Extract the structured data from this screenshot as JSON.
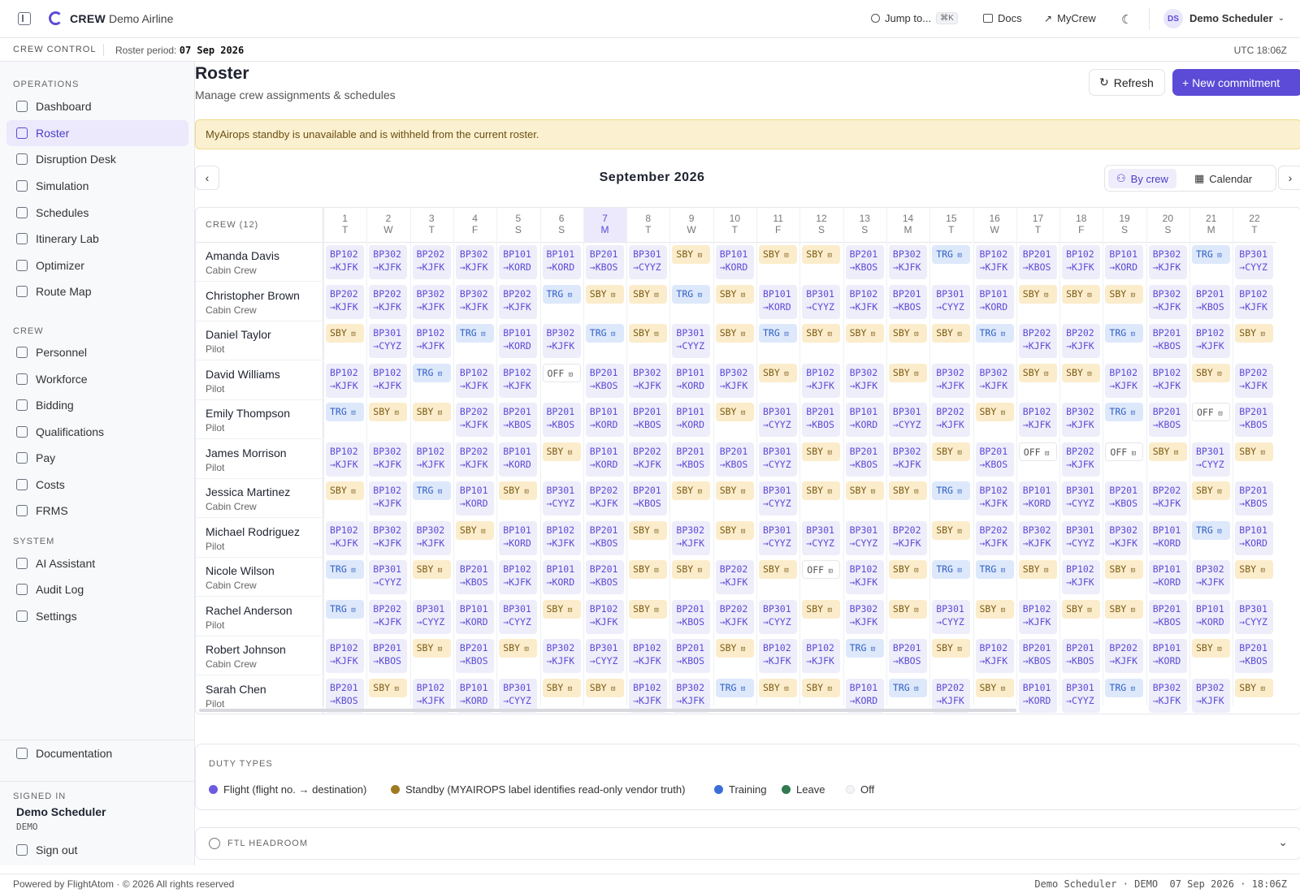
{
  "topbar": {
    "brand": "CREW",
    "airline": "Demo Airline",
    "jump": "Jump to...",
    "jump_kbd": "⌘K",
    "docs": "Docs",
    "mycrew": "MyCrew",
    "avatar": "DS",
    "user": "Demo Scheduler"
  },
  "subbar": {
    "title": "CREW CONTROL",
    "period_label": "Roster period:",
    "period_value": "07 Sep 2026",
    "utc": "UTC 18:06Z"
  },
  "sidebar": {
    "sections": {
      "operations": "OPERATIONS",
      "crew": "CREW",
      "system": "SYSTEM"
    },
    "operations": [
      "Dashboard",
      "Roster",
      "Disruption Desk",
      "Simulation",
      "Schedules",
      "Itinerary Lab",
      "Optimizer",
      "Route Map"
    ],
    "crew": [
      "Personnel",
      "Workforce",
      "Bidding",
      "Qualifications",
      "Pay",
      "Costs",
      "FRMS"
    ],
    "system": [
      "AI Assistant",
      "Audit Log",
      "Settings"
    ],
    "documentation": "Documentation",
    "signed_in_label": "SIGNED IN",
    "signed_in_user": "Demo Scheduler",
    "signed_in_role": "DEMO",
    "sign_out": "Sign out",
    "active": "Roster"
  },
  "page": {
    "title": "Roster",
    "subtitle": "Manage crew assignments & schedules",
    "refresh": "Refresh",
    "new_commitment": "+ New commitment",
    "banner": "MyAirops standby is unavailable and is withheld from the current roster.",
    "month": "September 2026",
    "view_by_crew": "By crew",
    "view_calendar": "Calendar"
  },
  "roster": {
    "crew_header": "CREW (12)",
    "today": 7,
    "days": [
      {
        "d": "1",
        "w": "T"
      },
      {
        "d": "2",
        "w": "W"
      },
      {
        "d": "3",
        "w": "T"
      },
      {
        "d": "4",
        "w": "F"
      },
      {
        "d": "5",
        "w": "S"
      },
      {
        "d": "6",
        "w": "S"
      },
      {
        "d": "7",
        "w": "M"
      },
      {
        "d": "8",
        "w": "T"
      },
      {
        "d": "9",
        "w": "W"
      },
      {
        "d": "10",
        "w": "T"
      },
      {
        "d": "11",
        "w": "F"
      },
      {
        "d": "12",
        "w": "S"
      },
      {
        "d": "13",
        "w": "S"
      },
      {
        "d": "14",
        "w": "M"
      },
      {
        "d": "15",
        "w": "T"
      },
      {
        "d": "16",
        "w": "W"
      },
      {
        "d": "17",
        "w": "T"
      },
      {
        "d": "18",
        "w": "F"
      },
      {
        "d": "19",
        "w": "S"
      },
      {
        "d": "20",
        "w": "S"
      },
      {
        "d": "21",
        "w": "M"
      },
      {
        "d": "22",
        "w": "T"
      }
    ],
    "crew": [
      {
        "name": "Amanda Davis",
        "role": "Cabin Crew",
        "duties": [
          "BP102 →KJFK",
          "BP302 →KJFK",
          "BP202 →KJFK",
          "BP302 →KJFK",
          "BP101 →KORD",
          "BP101 →KORD",
          "BP201 →KBOS",
          "BP301 →CYYZ",
          "SBY",
          "BP101 →KORD",
          "SBY",
          "SBY",
          "BP201 →KBOS",
          "BP302 →KJFK",
          "TRG",
          "BP102 →KJFK",
          "BP201 →KBOS",
          "BP102 →KJFK",
          "BP101 →KORD",
          "BP302 →KJFK",
          "TRG",
          "BP301 →CYYZ"
        ]
      },
      {
        "name": "Christopher Brown",
        "role": "Cabin Crew",
        "duties": [
          "BP202 →KJFK",
          "BP202 →KJFK",
          "BP302 →KJFK",
          "BP302 →KJFK",
          "BP202 →KJFK",
          "TRG",
          "SBY",
          "SBY",
          "TRG",
          "SBY",
          "BP101 →KORD",
          "BP301 →CYYZ",
          "BP102 →KJFK",
          "BP201 →KBOS",
          "BP301 →CYYZ",
          "BP101 →KORD",
          "SBY",
          "SBY",
          "SBY",
          "BP302 →KJFK",
          "BP201 →KBOS",
          "BP102 →KJFK"
        ]
      },
      {
        "name": "Daniel Taylor",
        "role": "Pilot",
        "duties": [
          "SBY",
          "BP301 →CYYZ",
          "BP102 →KJFK",
          "TRG",
          "BP101 →KORD",
          "BP302 →KJFK",
          "TRG",
          "SBY",
          "BP301 →CYYZ",
          "SBY",
          "TRG",
          "SBY",
          "SBY",
          "SBY",
          "SBY",
          "TRG",
          "BP202 →KJFK",
          "BP202 →KJFK",
          "TRG",
          "BP201 →KBOS",
          "BP102 →KJFK",
          "SBY"
        ]
      },
      {
        "name": "David Williams",
        "role": "Pilot",
        "duties": [
          "BP102 →KJFK",
          "BP102 →KJFK",
          "TRG",
          "BP102 →KJFK",
          "BP102 →KJFK",
          "OFF",
          "BP201 →KBOS",
          "BP302 →KJFK",
          "BP101 →KORD",
          "BP302 →KJFK",
          "SBY",
          "BP102 →KJFK",
          "BP302 →KJFK",
          "SBY",
          "BP302 →KJFK",
          "BP302 →KJFK",
          "SBY",
          "SBY",
          "BP102 →KJFK",
          "BP102 →KJFK",
          "SBY",
          "BP202 →KJFK"
        ]
      },
      {
        "name": "Emily Thompson",
        "role": "Pilot",
        "duties": [
          "TRG",
          "SBY",
          "SBY",
          "BP202 →KJFK",
          "BP201 →KBOS",
          "BP201 →KBOS",
          "BP101 →KORD",
          "BP201 →KBOS",
          "BP101 →KORD",
          "SBY",
          "BP301 →CYYZ",
          "BP201 →KBOS",
          "BP101 →KORD",
          "BP301 →CYYZ",
          "BP202 →KJFK",
          "SBY",
          "BP102 →KJFK",
          "BP302 →KJFK",
          "TRG",
          "BP201 →KBOS",
          "OFF",
          "BP201 →KBOS"
        ]
      },
      {
        "name": "James Morrison",
        "role": "Pilot",
        "duties": [
          "BP102 →KJFK",
          "BP302 →KJFK",
          "BP102 →KJFK",
          "BP202 →KJFK",
          "BP101 →KORD",
          "SBY",
          "BP101 →KORD",
          "BP202 →KJFK",
          "BP201 →KBOS",
          "BP201 →KBOS",
          "BP301 →CYYZ",
          "SBY",
          "BP201 →KBOS",
          "BP302 →KJFK",
          "SBY",
          "BP201 →KBOS",
          "OFF",
          "BP202 →KJFK",
          "OFF",
          "SBY",
          "BP301 →CYYZ",
          "SBY"
        ]
      },
      {
        "name": "Jessica Martinez",
        "role": "Cabin Crew",
        "duties": [
          "SBY",
          "BP102 →KJFK",
          "TRG",
          "BP101 →KORD",
          "SBY",
          "BP301 →CYYZ",
          "BP202 →KJFK",
          "BP201 →KBOS",
          "SBY",
          "SBY",
          "BP301 →CYYZ",
          "SBY",
          "SBY",
          "SBY",
          "TRG",
          "BP102 →KJFK",
          "BP101 →KORD",
          "BP301 →CYYZ",
          "BP201 →KBOS",
          "BP202 →KJFK",
          "SBY",
          "BP201 →KBOS"
        ]
      },
      {
        "name": "Michael Rodriguez",
        "role": "Pilot",
        "duties": [
          "BP102 →KJFK",
          "BP302 →KJFK",
          "BP302 →KJFK",
          "SBY",
          "BP101 →KORD",
          "BP102 →KJFK",
          "BP201 →KBOS",
          "SBY",
          "BP302 →KJFK",
          "SBY",
          "BP301 →CYYZ",
          "BP301 →CYYZ",
          "BP301 →CYYZ",
          "BP202 →KJFK",
          "SBY",
          "BP202 →KJFK",
          "BP302 →KJFK",
          "BP301 →CYYZ",
          "BP302 →KJFK",
          "BP101 →KORD",
          "TRG",
          "BP101 →KORD"
        ]
      },
      {
        "name": "Nicole Wilson",
        "role": "Cabin Crew",
        "duties": [
          "TRG",
          "BP301 →CYYZ",
          "SBY",
          "BP201 →KBOS",
          "BP102 →KJFK",
          "BP101 →KORD",
          "BP201 →KBOS",
          "SBY",
          "SBY",
          "BP202 →KJFK",
          "SBY",
          "OFF",
          "BP102 →KJFK",
          "SBY",
          "TRG",
          "TRG",
          "SBY",
          "BP102 →KJFK",
          "SBY",
          "BP101 →KORD",
          "BP302 →KJFK",
          "SBY"
        ]
      },
      {
        "name": "Rachel Anderson",
        "role": "Pilot",
        "duties": [
          "TRG",
          "BP202 →KJFK",
          "BP301 →CYYZ",
          "BP101 →KORD",
          "BP301 →CYYZ",
          "SBY",
          "BP102 →KJFK",
          "SBY",
          "BP201 →KBOS",
          "BP202 →KJFK",
          "BP301 →CYYZ",
          "SBY",
          "BP302 →KJFK",
          "SBY",
          "BP301 →CYYZ",
          "SBY",
          "BP102 →KJFK",
          "SBY",
          "SBY",
          "BP201 →KBOS",
          "BP101 →KORD",
          "BP301 →CYYZ"
        ]
      },
      {
        "name": "Robert Johnson",
        "role": "Cabin Crew",
        "duties": [
          "BP102 →KJFK",
          "BP201 →KBOS",
          "SBY",
          "BP201 →KBOS",
          "SBY",
          "BP302 →KJFK",
          "BP301 →CYYZ",
          "BP102 →KJFK",
          "BP201 →KBOS",
          "SBY",
          "BP102 →KJFK",
          "BP102 →KJFK",
          "TRG",
          "BP201 →KBOS",
          "SBY",
          "BP102 →KJFK",
          "BP201 →KBOS",
          "BP201 →KBOS",
          "BP202 →KJFK",
          "BP101 →KORD",
          "SBY",
          "BP201 →KBOS"
        ]
      },
      {
        "name": "Sarah Chen",
        "role": "Pilot",
        "duties": [
          "BP201 →KBOS",
          "SBY",
          "BP102 →KJFK",
          "BP101 →KORD",
          "BP301 →CYYZ",
          "SBY",
          "SBY",
          "BP102 →KJFK",
          "BP302 →KJFK",
          "TRG",
          "SBY",
          "SBY",
          "BP101 →KORD",
          "TRG",
          "BP202 →KJFK",
          "SBY",
          "BP101 →KORD",
          "BP301 →CYYZ",
          "TRG",
          "BP302 →KJFK",
          "BP302 →KJFK",
          "SBY"
        ]
      }
    ]
  },
  "legend": {
    "title": "DUTY TYPES",
    "items": [
      {
        "label": "Flight (flight no. → destination)",
        "color": "#6a5be0"
      },
      {
        "label": "Standby (MYAIROPS label identifies read-only vendor truth)",
        "color": "#a07a22"
      },
      {
        "label": "Training",
        "color": "#3a6fd8"
      },
      {
        "label": "Leave",
        "color": "#2f7a4e"
      },
      {
        "label": "Off",
        "color": "#f3f4f6"
      }
    ]
  },
  "ftl": {
    "title": "FTL HEADROOM"
  },
  "footer": {
    "left": "Powered by FlightAtom · © 2026 All rights reserved",
    "right": "Demo Scheduler · DEMO  07 Sep 2026 · 18:06Z"
  },
  "colors": {
    "accent": "#5b4bd6",
    "banner_bg": "#fbf0cf"
  }
}
